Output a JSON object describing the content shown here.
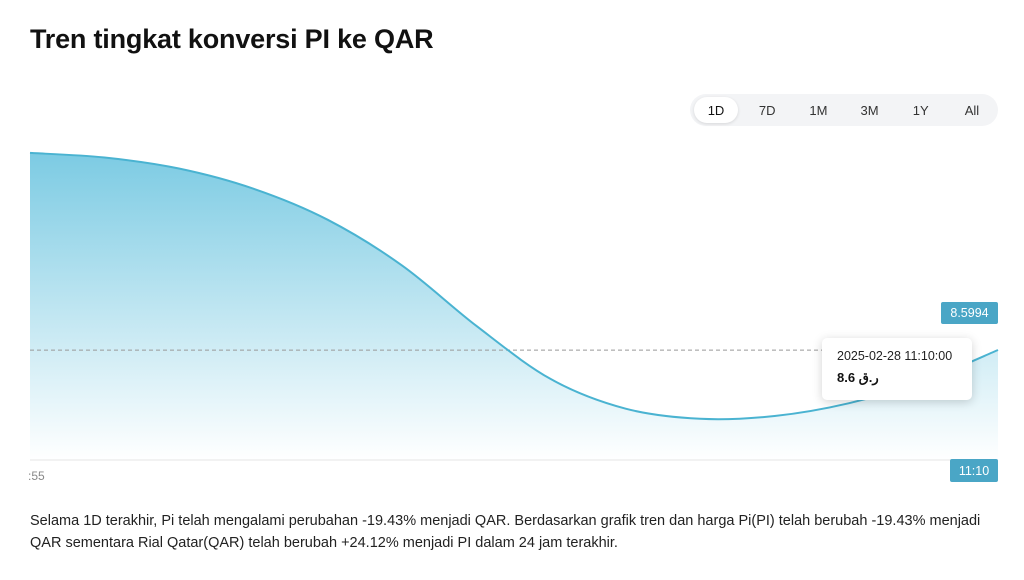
{
  "page": {
    "title": "Tren tingkat konversi PI ke QAR",
    "description": "Selama 1D terakhir, Pi telah mengalami perubahan -19.43% menjadi QAR. Berdasarkan grafik tren dan harga Pi(PI) telah berubah -19.43% menjadi QAR sementara Rial Qatar(QAR) telah berubah +24.12% menjadi PI dalam 24 jam terakhir."
  },
  "range_tabs": {
    "items": [
      "1D",
      "7D",
      "1M",
      "3M",
      "1Y",
      "All"
    ],
    "active": "1D"
  },
  "chart_data": {
    "type": "area",
    "x_tick_labels": [
      ":55"
    ],
    "current_price_label": "8.5994",
    "current_time_label": "11:10",
    "series": [
      {
        "values": [
          10.75,
          10.7,
          10.58,
          10.36,
          10.02,
          9.52,
          8.86,
          8.28,
          7.96,
          7.85,
          7.88,
          8.02,
          8.26,
          8.6
        ]
      }
    ],
    "y_range": [
      7.4,
      11.0
    ],
    "reference_value": 8.5994,
    "tooltip": {
      "date": "2025-02-28 11:10:00",
      "value": "8.6 ر.ق"
    },
    "colors": {
      "line": "#4ab3d1",
      "fill_top": "#7ccbe3",
      "fill_bottom": "#ffffff",
      "tag": "#4aa6c6"
    }
  }
}
